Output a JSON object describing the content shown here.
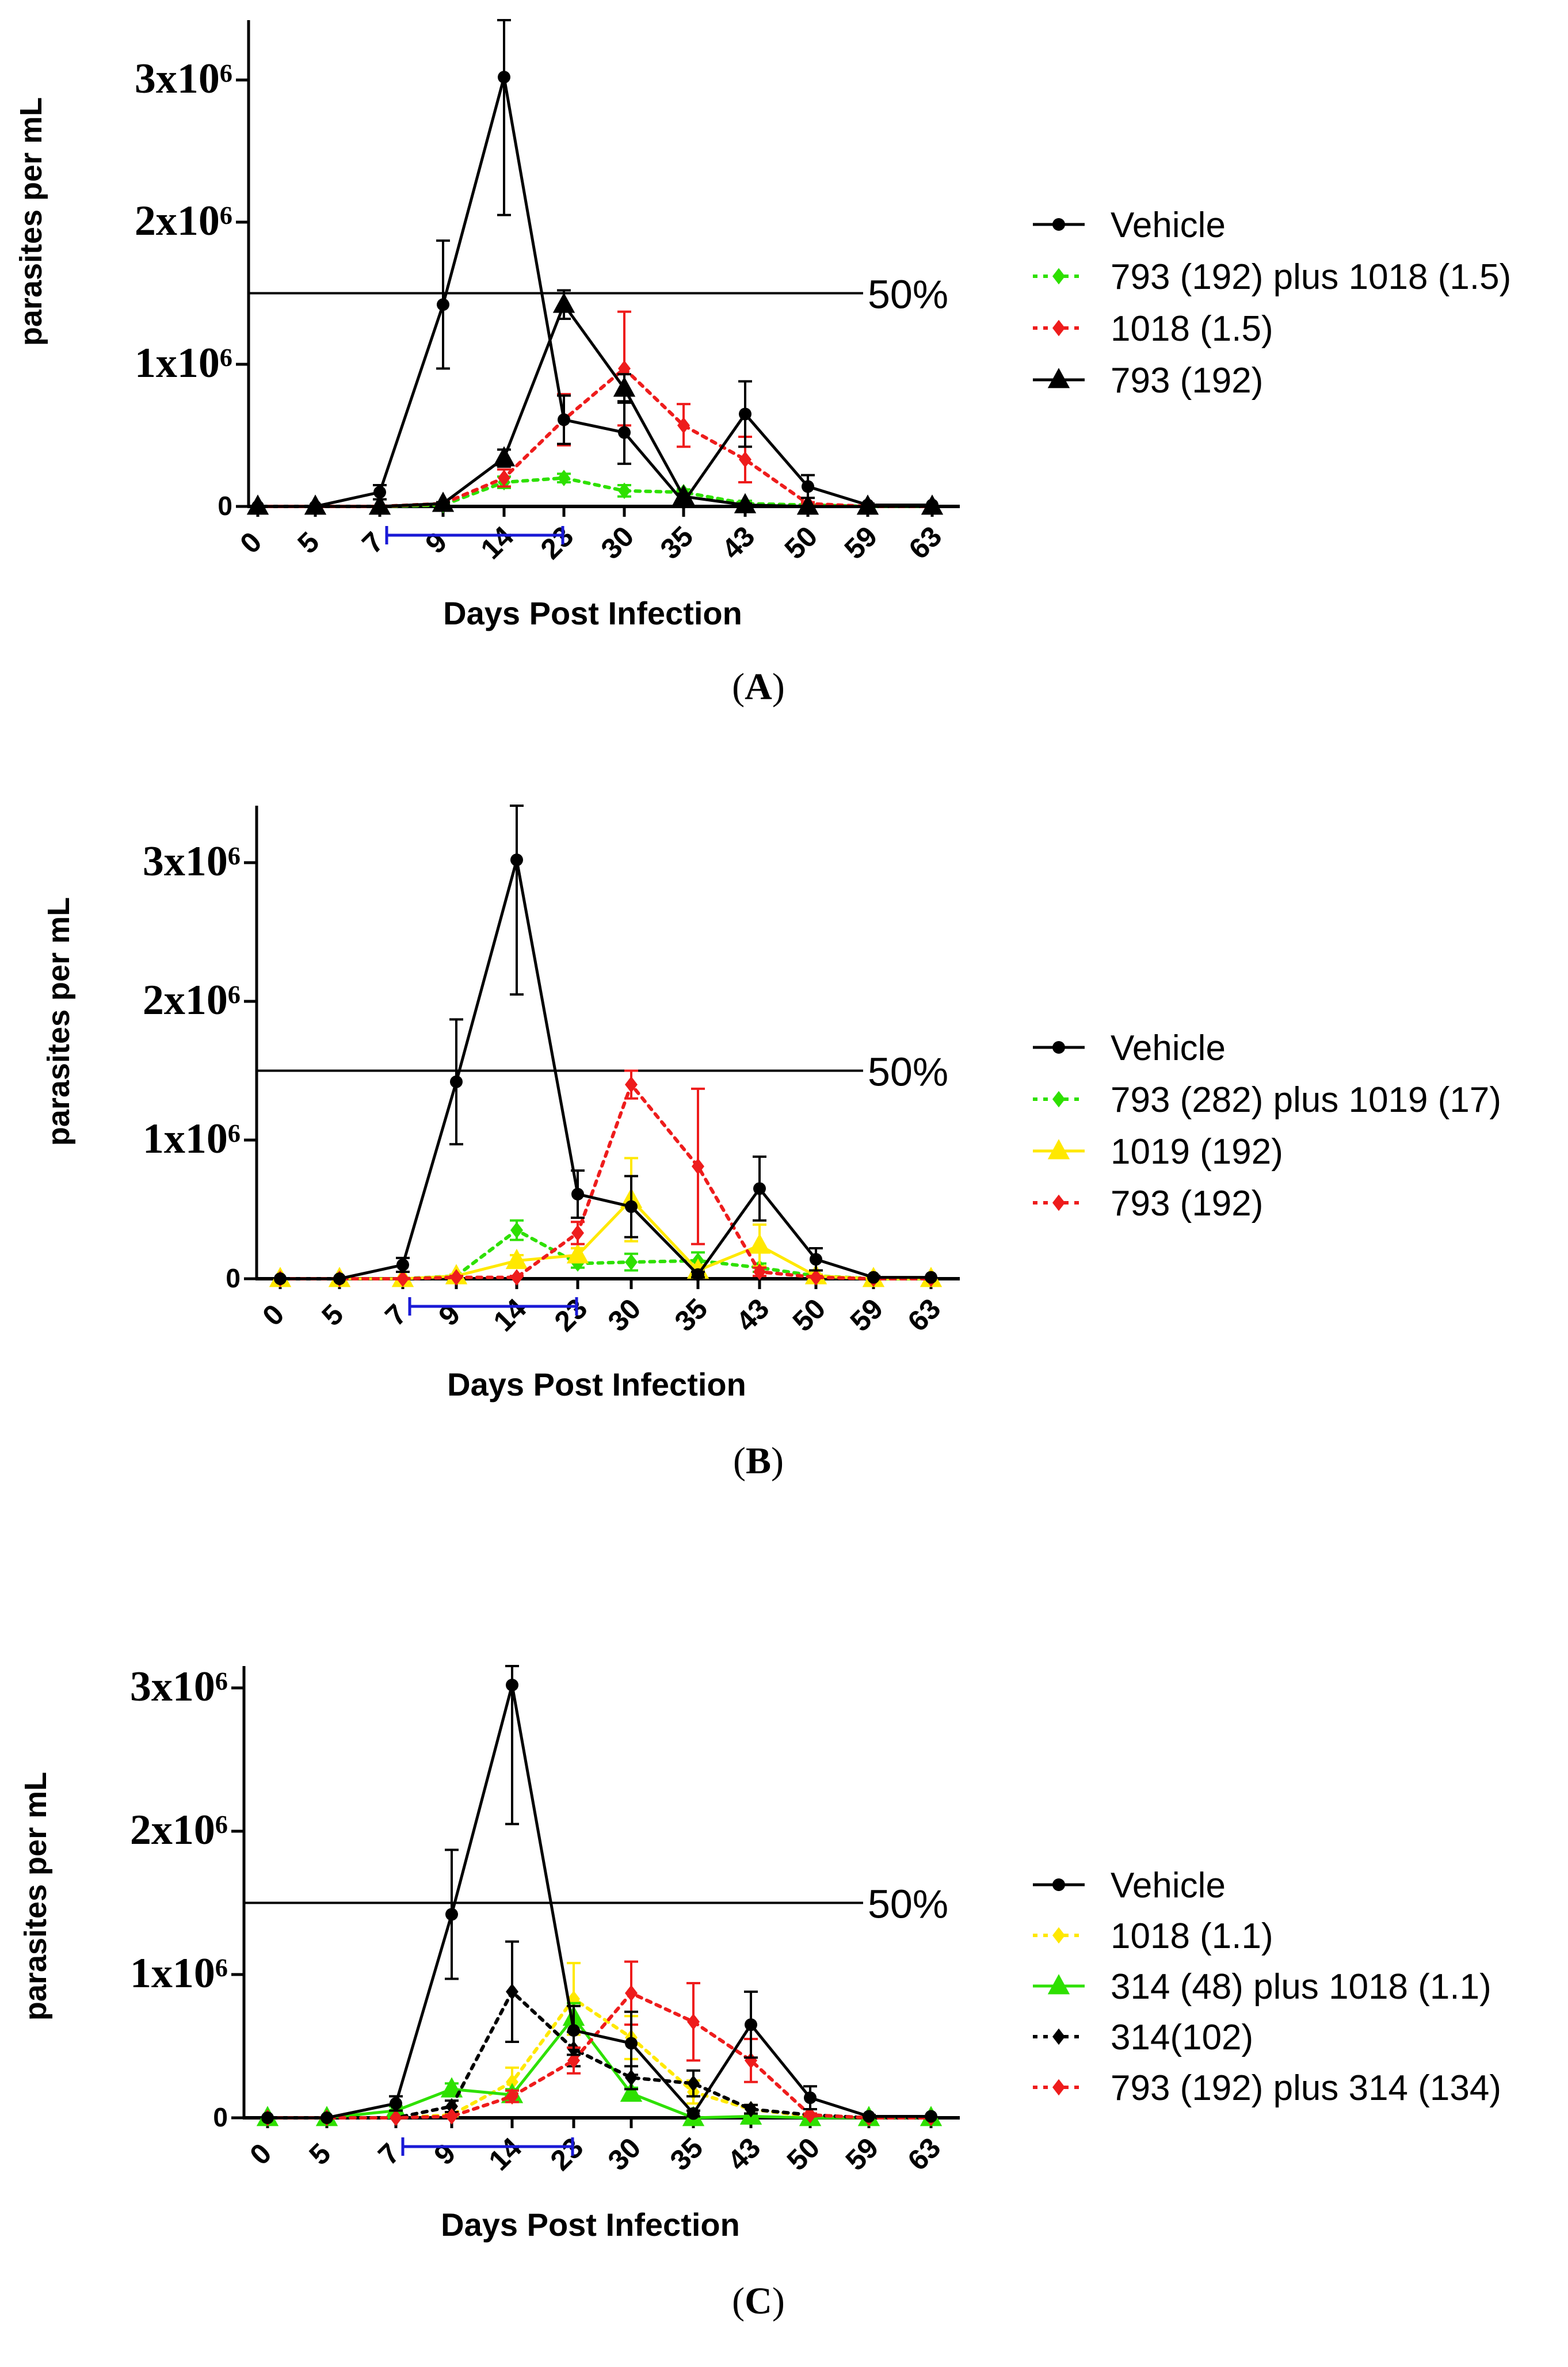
{
  "colors": {
    "vehicle": "#000000",
    "green": "#2ee000",
    "red": "#ee1c1c",
    "yellow": "#ffe800",
    "black_dot": "#000000",
    "bracket": "#1a1ad6",
    "axis": "#000000"
  },
  "chart_data": [
    {
      "panel_label": "(A)",
      "type": "line",
      "title": "",
      "xlabel": "Days Post Infection",
      "ylabel": "parasites per mL",
      "categories": [
        "0",
        "5",
        "7",
        "9",
        "14",
        "23",
        "30",
        "35",
        "43",
        "50",
        "59",
        "63"
      ],
      "ylim": [
        0,
        3500000
      ],
      "yticks": [
        0,
        1000000,
        2000000,
        3000000
      ],
      "ytick_labels": [
        "0",
        "1x10⁶",
        "2x10⁶",
        "3x10⁶"
      ],
      "reference_line": {
        "value": 1500000,
        "label": "50%"
      },
      "treatment_window": [
        "7",
        "23"
      ],
      "legend_position": "right",
      "series": [
        {
          "name": "Vehicle",
          "style": "solid",
          "marker": "circle",
          "color": "#000000",
          "values": [
            0,
            0,
            100000,
            1420000,
            3020000,
            610000,
            520000,
            30000,
            650000,
            140000,
            10000,
            10000
          ],
          "errors": [
            0,
            0,
            50000,
            450000,
            970000,
            170000,
            220000,
            20000,
            230000,
            80000,
            10000,
            0
          ]
        },
        {
          "name": "793 (192) plus 1018 (1.5)",
          "style": "dotted",
          "marker": "diamond",
          "color": "#2ee000",
          "values": [
            0,
            0,
            0,
            10000,
            170000,
            200000,
            110000,
            100000,
            20000,
            10000,
            0,
            0
          ],
          "errors": [
            0,
            0,
            0,
            10000,
            40000,
            30000,
            40000,
            20000,
            20000,
            0,
            0,
            0
          ]
        },
        {
          "name": "1018 (1.5)",
          "style": "dotted",
          "marker": "diamond",
          "color": "#ee1c1c",
          "values": [
            0,
            0,
            0,
            20000,
            200000,
            610000,
            970000,
            570000,
            330000,
            20000,
            0,
            0
          ],
          "errors": [
            0,
            0,
            0,
            10000,
            60000,
            180000,
            400000,
            150000,
            160000,
            10000,
            0,
            0
          ]
        },
        {
          "name": "793 (192)",
          "style": "solid",
          "marker": "triangle",
          "color": "#000000",
          "values": [
            0,
            0,
            0,
            20000,
            340000,
            1420000,
            830000,
            70000,
            10000,
            0,
            0,
            0
          ],
          "errors": [
            0,
            0,
            0,
            10000,
            60000,
            100000,
            100000,
            20000,
            10000,
            0,
            0,
            0
          ]
        }
      ]
    },
    {
      "panel_label": "(B)",
      "type": "line",
      "title": "",
      "xlabel": "Days Post Infection",
      "ylabel": "parasites per mL",
      "categories": [
        "0",
        "5",
        "7",
        "9",
        "14",
        "23",
        "30",
        "35",
        "43",
        "50",
        "59",
        "63"
      ],
      "ylim": [
        0,
        3500000
      ],
      "yticks": [
        0,
        1000000,
        2000000,
        3000000
      ],
      "ytick_labels": [
        "0",
        "1x10⁶",
        "2x10⁶",
        "3x10⁶"
      ],
      "reference_line": {
        "value": 1500000,
        "label": "50%"
      },
      "treatment_window": [
        "7",
        "23"
      ],
      "legend_position": "right",
      "series": [
        {
          "name": "Vehicle",
          "style": "solid",
          "marker": "circle",
          "color": "#000000",
          "values": [
            0,
            0,
            100000,
            1420000,
            3020000,
            610000,
            520000,
            30000,
            650000,
            140000,
            10000,
            10000
          ],
          "errors": [
            0,
            0,
            50000,
            450000,
            970000,
            170000,
            220000,
            20000,
            230000,
            80000,
            10000,
            0
          ]
        },
        {
          "name": "793 (282) plus 1019 (17)",
          "style": "dotted",
          "marker": "diamond",
          "color": "#2ee000",
          "values": [
            0,
            0,
            0,
            20000,
            350000,
            110000,
            120000,
            130000,
            80000,
            20000,
            0,
            0
          ],
          "errors": [
            0,
            0,
            0,
            10000,
            70000,
            30000,
            60000,
            60000,
            30000,
            10000,
            0,
            0
          ]
        },
        {
          "name": "1019 (192)",
          "style": "solid",
          "marker": "triangle",
          "color": "#ffe800",
          "values": [
            0,
            0,
            0,
            20000,
            130000,
            170000,
            570000,
            60000,
            240000,
            20000,
            0,
            0
          ],
          "errors": [
            0,
            0,
            0,
            10000,
            40000,
            50000,
            300000,
            40000,
            150000,
            10000,
            0,
            0
          ]
        },
        {
          "name": "793 (192)",
          "style": "dotted",
          "marker": "diamond",
          "color": "#ee1c1c",
          "values": [
            0,
            0,
            0,
            10000,
            10000,
            330000,
            1400000,
            810000,
            50000,
            10000,
            0,
            0
          ],
          "errors": [
            0,
            0,
            0,
            10000,
            10000,
            80000,
            100000,
            560000,
            30000,
            10000,
            0,
            0
          ]
        }
      ]
    },
    {
      "panel_label": "(C)",
      "type": "line",
      "title": "",
      "xlabel": "Days Post Infection",
      "ylabel": "parasites per mL",
      "categories": [
        "0",
        "5",
        "7",
        "9",
        "14",
        "23",
        "30",
        "35",
        "43",
        "50",
        "59",
        "63"
      ],
      "ylim": [
        0,
        3200000
      ],
      "yticks": [
        0,
        1000000,
        2000000,
        3000000
      ],
      "ytick_labels": [
        "0",
        "1x10⁶",
        "2x10⁶",
        "3x10⁶"
      ],
      "reference_line": {
        "value": 1500000,
        "label": "50%"
      },
      "treatment_window": [
        "7",
        "23"
      ],
      "legend_position": "right",
      "series": [
        {
          "name": "Vehicle",
          "style": "solid",
          "marker": "circle",
          "color": "#000000",
          "values": [
            0,
            0,
            100000,
            1420000,
            3020000,
            610000,
            520000,
            30000,
            650000,
            140000,
            10000,
            10000
          ],
          "errors": [
            0,
            0,
            50000,
            450000,
            970000,
            170000,
            220000,
            20000,
            230000,
            80000,
            10000,
            0
          ]
        },
        {
          "name": "1018 (1.1)",
          "style": "dotted",
          "marker": "diamond",
          "color": "#ffe800",
          "values": [
            0,
            0,
            0,
            20000,
            250000,
            830000,
            560000,
            180000,
            60000,
            10000,
            0,
            0
          ],
          "errors": [
            0,
            0,
            0,
            10000,
            100000,
            250000,
            150000,
            80000,
            30000,
            10000,
            0,
            0
          ]
        },
        {
          "name": "314 (48) plus 1018 (1.1)",
          "style": "solid",
          "marker": "triangle",
          "color": "#2ee000",
          "values": [
            0,
            0,
            50000,
            200000,
            160000,
            700000,
            170000,
            0,
            10000,
            0,
            0,
            0
          ],
          "errors": [
            0,
            0,
            30000,
            40000,
            40000,
            100000,
            40000,
            0,
            10000,
            0,
            0,
            0
          ]
        },
        {
          "name": "314(102)",
          "style": "dotted",
          "marker": "diamond",
          "color": "#000000",
          "values": [
            0,
            0,
            0,
            80000,
            880000,
            480000,
            280000,
            240000,
            60000,
            20000,
            0,
            0
          ],
          "errors": [
            0,
            0,
            0,
            40000,
            350000,
            120000,
            80000,
            90000,
            30000,
            10000,
            0,
            0
          ]
        },
        {
          "name": "793 (192) plus 314 (134)",
          "style": "dotted",
          "marker": "diamond",
          "color": "#ee1c1c",
          "values": [
            0,
            0,
            0,
            10000,
            150000,
            400000,
            870000,
            670000,
            400000,
            20000,
            0,
            0
          ],
          "errors": [
            0,
            0,
            0,
            10000,
            40000,
            90000,
            220000,
            270000,
            150000,
            10000,
            0,
            0
          ]
        }
      ]
    }
  ]
}
